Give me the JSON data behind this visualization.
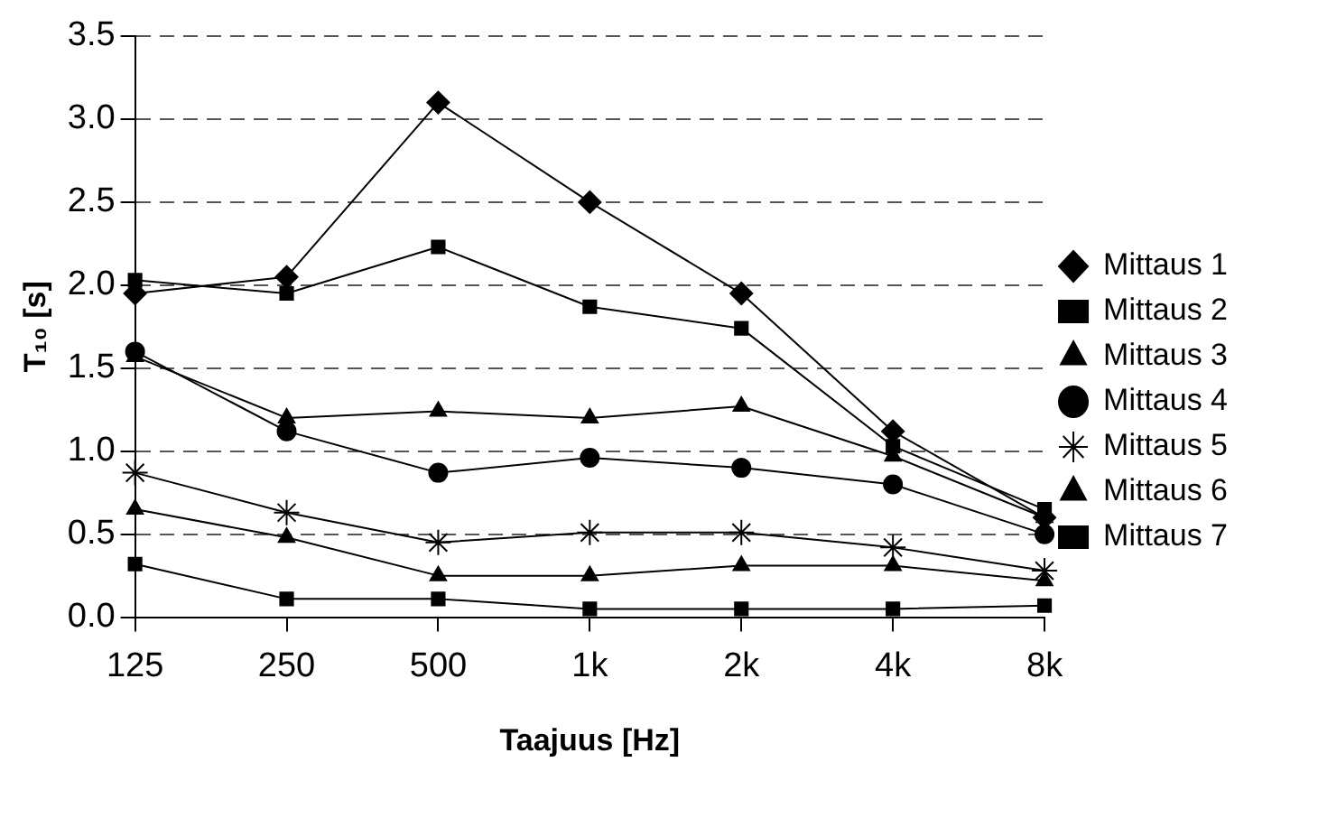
{
  "chart_data": {
    "type": "line",
    "xlabel": "Taajuus [Hz]",
    "ylabel": "T₁₀ [s]",
    "categories": [
      "125",
      "250",
      "500",
      "1k",
      "2k",
      "4k",
      "8k"
    ],
    "ylim": [
      0,
      3.5
    ],
    "yticks": [
      {
        "value": 0,
        "label": "0.0"
      },
      {
        "value": 0.5,
        "label": "0.5"
      },
      {
        "value": 1,
        "label": "1.0"
      },
      {
        "value": 1.5,
        "label": "1.5"
      },
      {
        "value": 2,
        "label": "2.0"
      },
      {
        "value": 2.5,
        "label": "2.5"
      },
      {
        "value": 3,
        "label": "3.0"
      },
      {
        "value": 3.5,
        "label": "3.5"
      }
    ],
    "grid": "y",
    "legend": "right",
    "line_style": "solid",
    "series": [
      {
        "name": "Mittaus 1",
        "color": "#000000",
        "marker": "diamond",
        "values": [
          1.95,
          2.05,
          3.1,
          2.5,
          1.95,
          1.12,
          0.6
        ]
      },
      {
        "name": "Mittaus 2",
        "color": "#000000",
        "marker": "square",
        "values": [
          2.03,
          1.95,
          2.23,
          1.87,
          1.74,
          1.03,
          0.65
        ]
      },
      {
        "name": "Mittaus 3",
        "color": "#000000",
        "marker": "triangle",
        "values": [
          1.57,
          1.2,
          1.24,
          1.2,
          1.27,
          0.97,
          0.6
        ]
      },
      {
        "name": "Mittaus 4",
        "color": "#000000",
        "marker": "circle",
        "values": [
          1.6,
          1.12,
          0.87,
          0.96,
          0.9,
          0.8,
          0.5
        ]
      },
      {
        "name": "Mittaus 5",
        "color": "#000000",
        "marker": "cross",
        "values": [
          0.87,
          0.63,
          0.45,
          0.51,
          0.51,
          0.42,
          0.28
        ]
      },
      {
        "name": "Mittaus 6",
        "color": "#000000",
        "marker": "triangle",
        "values": [
          0.65,
          0.48,
          0.25,
          0.25,
          0.31,
          0.31,
          0.22
        ]
      },
      {
        "name": "Mittaus 7",
        "color": "#000000",
        "marker": "square",
        "values": [
          0.32,
          0.11,
          0.11,
          0.05,
          0.05,
          0.05,
          0.07
        ]
      }
    ]
  }
}
